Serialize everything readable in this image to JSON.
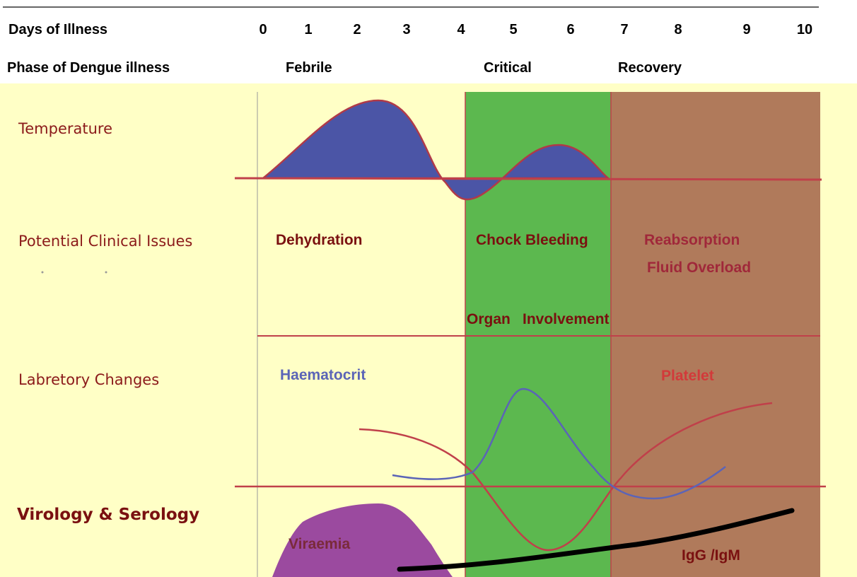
{
  "header": {
    "days_label": "Days of Illness",
    "days": [
      "0",
      "1",
      "2",
      "3",
      "4",
      "5",
      "6",
      "7",
      "8",
      "9",
      "10"
    ],
    "phase_label": "Phase of Dengue illness",
    "phases": {
      "febrile": "Febrile",
      "critical": "Critical",
      "recovery": "Recovery"
    }
  },
  "rows": {
    "temperature": "Temperature",
    "clinical": "Potential Clinical Issues",
    "laboratory": "Labretory Changes",
    "virology": "Virology & Serology"
  },
  "issues": {
    "febrile": "Dehydration",
    "critical": "Chock Bleeding",
    "critical_organ": "Organ",
    "critical_involvement": "Involvement",
    "recovery_1": "Reabsorption",
    "recovery_2": "Fluid Overload"
  },
  "lab_labels": {
    "haematocrit": "Haematocrit",
    "platelet": "Platelet"
  },
  "virology_labels": {
    "viraemia": "Viraemia",
    "igg_igm": "IgG /IgM"
  },
  "colors": {
    "febrile_bg": "#ffffc6",
    "critical_bg": "#5cb84f",
    "recovery_bg": "#b07a5b",
    "temperature_fill": "#4b55a6",
    "viraemia_fill": "#9b4a9f",
    "haematocrit_line": "#5b64b7",
    "platelet_line": "#d23a3a",
    "antibody_line": "#000000",
    "divider_line": "#c0404a"
  }
}
